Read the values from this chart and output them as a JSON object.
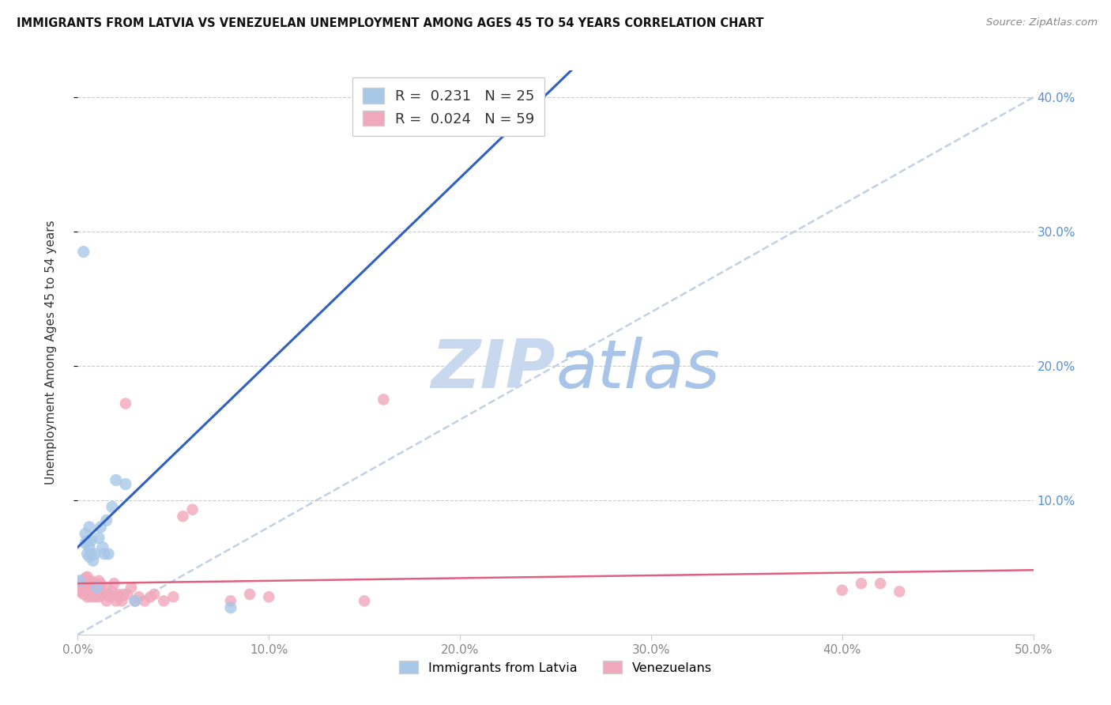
{
  "title": "IMMIGRANTS FROM LATVIA VS VENEZUELAN UNEMPLOYMENT AMONG AGES 45 TO 54 YEARS CORRELATION CHART",
  "source": "Source: ZipAtlas.com",
  "ylabel": "Unemployment Among Ages 45 to 54 years",
  "xlim": [
    0.0,
    0.5
  ],
  "ylim": [
    0.0,
    0.42
  ],
  "xtick_labels": [
    "0.0%",
    "10.0%",
    "20.0%",
    "30.0%",
    "40.0%",
    "50.0%"
  ],
  "xtick_vals": [
    0.0,
    0.1,
    0.2,
    0.3,
    0.4,
    0.5
  ],
  "ytick_labels": [
    "10.0%",
    "20.0%",
    "30.0%",
    "40.0%"
  ],
  "ytick_vals": [
    0.1,
    0.2,
    0.3,
    0.4
  ],
  "latvia_R": "0.231",
  "latvia_N": "25",
  "venezuela_R": "0.024",
  "venezuela_N": "59",
  "latvia_color": "#a8c8e8",
  "venezuela_color": "#f0a8bc",
  "latvia_line_color": "#3060c0",
  "venezuela_line_color": "#e06080",
  "diag_color": "#b8c8e0",
  "bg_color": "#ffffff",
  "watermark_zip": "ZIP",
  "watermark_atlas": "atlas",
  "watermark_color_zip": "#c8d8ee",
  "watermark_color_atlas": "#a8c4e8",
  "grid_color": "#cccccc",
  "title_color": "#111111",
  "axis_tick_color": "#888888",
  "right_tick_color": "#5590d8",
  "ylabel_color": "#333333",
  "legend_edge_color": "#cccccc",
  "latvia_x": [
    0.001,
    0.003,
    0.004,
    0.004,
    0.005,
    0.005,
    0.006,
    0.006,
    0.006,
    0.007,
    0.007,
    0.008,
    0.009,
    0.01,
    0.011,
    0.012,
    0.013,
    0.014,
    0.015,
    0.016,
    0.018,
    0.02,
    0.025,
    0.03,
    0.08
  ],
  "latvia_y": [
    0.04,
    0.285,
    0.068,
    0.075,
    0.06,
    0.07,
    0.058,
    0.065,
    0.08,
    0.06,
    0.07,
    0.055,
    0.06,
    0.035,
    0.072,
    0.08,
    0.065,
    0.06,
    0.085,
    0.06,
    0.095,
    0.115,
    0.112,
    0.025,
    0.02
  ],
  "venezuela_x": [
    0.001,
    0.001,
    0.002,
    0.002,
    0.003,
    0.003,
    0.004,
    0.004,
    0.005,
    0.005,
    0.005,
    0.006,
    0.006,
    0.007,
    0.007,
    0.008,
    0.008,
    0.009,
    0.009,
    0.01,
    0.01,
    0.011,
    0.011,
    0.012,
    0.012,
    0.013,
    0.014,
    0.015,
    0.015,
    0.016,
    0.017,
    0.018,
    0.019,
    0.02,
    0.021,
    0.022,
    0.023,
    0.024,
    0.025,
    0.026,
    0.028,
    0.03,
    0.032,
    0.035,
    0.038,
    0.04,
    0.045,
    0.05,
    0.055,
    0.06,
    0.08,
    0.09,
    0.1,
    0.15,
    0.16,
    0.4,
    0.41,
    0.42,
    0.43
  ],
  "venezuela_y": [
    0.032,
    0.038,
    0.032,
    0.04,
    0.03,
    0.038,
    0.035,
    0.042,
    0.028,
    0.035,
    0.043,
    0.03,
    0.036,
    0.028,
    0.04,
    0.03,
    0.035,
    0.028,
    0.038,
    0.03,
    0.035,
    0.028,
    0.04,
    0.03,
    0.038,
    0.03,
    0.03,
    0.025,
    0.035,
    0.03,
    0.028,
    0.032,
    0.038,
    0.025,
    0.03,
    0.028,
    0.025,
    0.03,
    0.172,
    0.03,
    0.035,
    0.025,
    0.028,
    0.025,
    0.028,
    0.03,
    0.025,
    0.028,
    0.088,
    0.093,
    0.025,
    0.03,
    0.028,
    0.025,
    0.175,
    0.033,
    0.038,
    0.038,
    0.032
  ],
  "lv_trendline_x0": 0.0,
  "lv_trendline_y0": 0.065,
  "lv_trendline_x1": 0.08,
  "lv_trendline_y1": 0.175,
  "vz_trendline_x0": 0.0,
  "vz_trendline_y0": 0.038,
  "vz_trendline_x1": 0.5,
  "vz_trendline_y1": 0.048
}
